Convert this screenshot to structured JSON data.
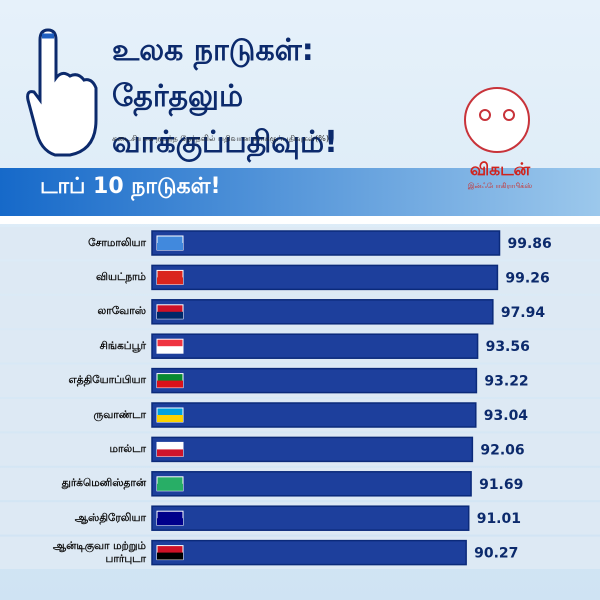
{
  "chart_data": {
    "type": "bar",
    "orientation": "horizontal",
    "title": "உலக நாடுகள்: தேர்தலும் வாக்குப்பதிவும்!",
    "subtitle": "கடைசியாக நடந்த தேர்தலில் பதிவான வாக்குப்பதிவுகள்(%)",
    "banner": "டாப் 10 நாடுகள்!",
    "categories": [
      "சோமாலியா",
      "வியட்நாம்",
      "லாவோஸ்",
      "சிங்கப்பூர்",
      "எத்தியோப்பியா",
      "ருவாண்டா",
      "மால்டா",
      "துர்க்மெனிஸ்தான்",
      "ஆஸ்திரேலியா",
      "ஆன்டிகுவா மற்றும் பார்புடா"
    ],
    "values": [
      99.86,
      99.26,
      97.94,
      93.56,
      93.22,
      93.04,
      92.06,
      91.69,
      91.01,
      90.27
    ],
    "color": "#1d3f9c",
    "xlim": [
      0,
      100
    ]
  },
  "brand": {
    "name": "விகடன்",
    "tagline": "இன்ஃபோகிராபிக்ஸ்"
  }
}
